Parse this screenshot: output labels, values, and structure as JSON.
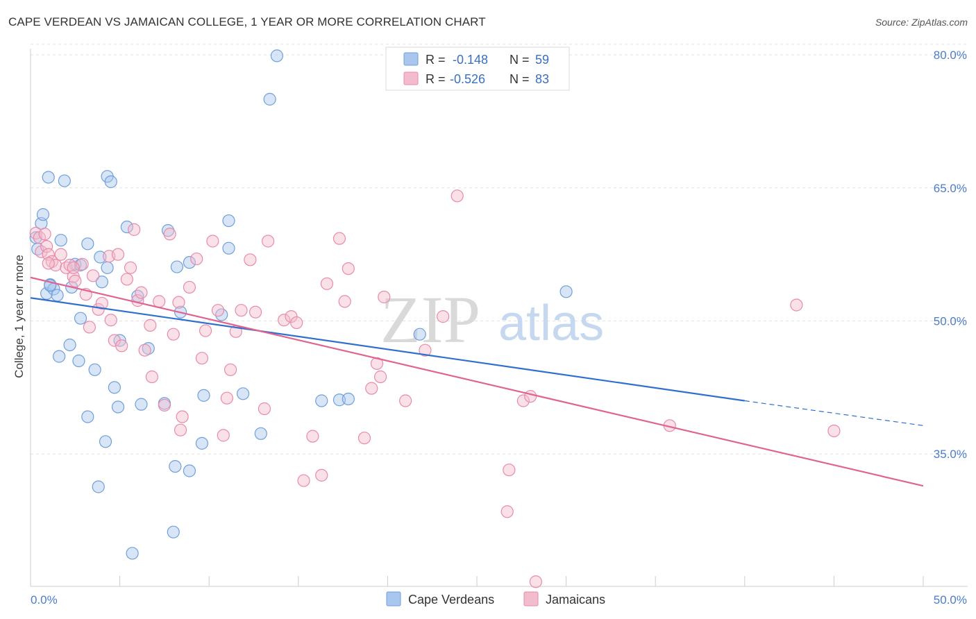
{
  "title": "CAPE VERDEAN VS JAMAICAN COLLEGE, 1 YEAR OR MORE CORRELATION CHART",
  "source": "Source: ZipAtlas.com",
  "watermark": {
    "zip": "ZIP",
    "atlas": "atlas"
  },
  "colors": {
    "blue": "#6f9fdc",
    "blue_fill": "#a9c6ee",
    "blue_line": "#2f6fce",
    "pink": "#e98aaa",
    "pink_fill": "#f3bccd",
    "pink_line": "#e0648f",
    "axis_text": "#4a7ccc",
    "grid": "#e3e3e3"
  },
  "legend": {
    "rows": [
      {
        "r_label": "R =",
        "r_value": "-0.148",
        "n_label": "N =",
        "n_value": "59"
      },
      {
        "r_label": "R =",
        "r_value": "-0.526",
        "n_label": "N =",
        "n_value": "83"
      }
    ]
  },
  "bottom_legend": [
    "Cape Verdeans",
    "Jamaicans"
  ],
  "chart_data": {
    "type": "scatter",
    "title": "CAPE VERDEAN VS JAMAICAN COLLEGE, 1 YEAR OR MORE CORRELATION CHART",
    "xlabel": "",
    "ylabel": "College, 1 year or more",
    "xlim": [
      0,
      50
    ],
    "ylim": [
      20,
      82
    ],
    "x_tick_labels": [
      "0.0%",
      "50.0%"
    ],
    "y_ticks": [
      35,
      50,
      65,
      80
    ],
    "y_tick_labels": [
      "35.0%",
      "50.0%",
      "65.0%",
      "80.0%"
    ],
    "grid": true,
    "legend_position": "top-center",
    "series": [
      {
        "name": "Cape Verdeans",
        "color": "#6f9fdc",
        "r": -0.148,
        "n": 59,
        "trend": {
          "x": [
            0,
            40
          ],
          "y": [
            52.6,
            41.0
          ],
          "dashed_to": [
            50,
            38.2
          ]
        },
        "points": [
          [
            0.3,
            59.4
          ],
          [
            0.4,
            58.1
          ],
          [
            0.6,
            61.0
          ],
          [
            0.7,
            62.0
          ],
          [
            0.9,
            53.1
          ],
          [
            1.0,
            66.2
          ],
          [
            1.1,
            54.1
          ],
          [
            1.3,
            53.6
          ],
          [
            1.5,
            52.9
          ],
          [
            1.6,
            46.0
          ],
          [
            1.7,
            59.1
          ],
          [
            1.9,
            65.8
          ],
          [
            2.2,
            47.3
          ],
          [
            2.3,
            53.8
          ],
          [
            2.5,
            56.4
          ],
          [
            2.7,
            45.5
          ],
          [
            2.8,
            50.3
          ],
          [
            3.2,
            39.2
          ],
          [
            3.2,
            58.7
          ],
          [
            3.6,
            44.5
          ],
          [
            3.9,
            57.2
          ],
          [
            4.0,
            54.4
          ],
          [
            4.2,
            36.4
          ],
          [
            4.3,
            66.3
          ],
          [
            4.5,
            65.7
          ],
          [
            4.7,
            42.5
          ],
          [
            4.9,
            40.3
          ],
          [
            5.0,
            47.8
          ],
          [
            5.4,
            60.6
          ],
          [
            6.0,
            52.8
          ],
          [
            6.2,
            40.6
          ],
          [
            6.6,
            46.9
          ],
          [
            7.5,
            40.7
          ],
          [
            7.7,
            60.2
          ],
          [
            8.1,
            33.6
          ],
          [
            8.2,
            56.1
          ],
          [
            8.4,
            51.0
          ],
          [
            8.9,
            56.6
          ],
          [
            8.9,
            33.1
          ],
          [
            9.6,
            36.2
          ],
          [
            9.7,
            41.6
          ],
          [
            10.7,
            50.7
          ],
          [
            11.1,
            58.2
          ],
          [
            11.1,
            61.3
          ],
          [
            11.9,
            41.8
          ],
          [
            12.9,
            37.3
          ],
          [
            13.4,
            75.0
          ],
          [
            13.8,
            79.9
          ],
          [
            3.8,
            31.3
          ],
          [
            8.0,
            26.2
          ],
          [
            5.7,
            23.8
          ],
          [
            16.3,
            41.0
          ],
          [
            17.3,
            41.1
          ],
          [
            17.8,
            41.2
          ],
          [
            21.8,
            48.5
          ],
          [
            30.0,
            53.3
          ],
          [
            2.8,
            56.3
          ],
          [
            1.1,
            54.0
          ],
          [
            4.3,
            56.0
          ]
        ]
      },
      {
        "name": "Jamaicans",
        "color": "#e98aaa",
        "r": -0.526,
        "n": 83,
        "trend": {
          "x": [
            0,
            50
          ],
          "y": [
            54.9,
            31.4
          ]
        },
        "points": [
          [
            0.3,
            59.9
          ],
          [
            0.5,
            59.4
          ],
          [
            0.6,
            57.8
          ],
          [
            0.8,
            59.8
          ],
          [
            0.9,
            58.4
          ],
          [
            1.0,
            57.5
          ],
          [
            1.2,
            56.7
          ],
          [
            1.4,
            56.3
          ],
          [
            1.7,
            57.5
          ],
          [
            2.0,
            56.0
          ],
          [
            2.2,
            56.3
          ],
          [
            2.4,
            55.0
          ],
          [
            2.5,
            54.5
          ],
          [
            2.9,
            56.4
          ],
          [
            3.1,
            53.0
          ],
          [
            3.3,
            49.3
          ],
          [
            3.5,
            55.1
          ],
          [
            3.8,
            51.3
          ],
          [
            4.0,
            52.0
          ],
          [
            4.4,
            57.3
          ],
          [
            4.5,
            50.1
          ],
          [
            4.7,
            47.8
          ],
          [
            4.9,
            57.5
          ],
          [
            5.1,
            47.2
          ],
          [
            5.4,
            54.7
          ],
          [
            5.6,
            56.0
          ],
          [
            5.8,
            60.3
          ],
          [
            6.0,
            52.3
          ],
          [
            6.2,
            53.2
          ],
          [
            6.4,
            46.7
          ],
          [
            6.7,
            49.5
          ],
          [
            6.8,
            43.7
          ],
          [
            7.2,
            52.2
          ],
          [
            7.5,
            40.5
          ],
          [
            7.8,
            59.8
          ],
          [
            8.0,
            48.5
          ],
          [
            8.3,
            52.1
          ],
          [
            8.4,
            37.7
          ],
          [
            8.5,
            39.2
          ],
          [
            8.9,
            53.8
          ],
          [
            9.3,
            57.0
          ],
          [
            9.6,
            45.8
          ],
          [
            9.8,
            48.9
          ],
          [
            10.2,
            59.0
          ],
          [
            10.5,
            51.2
          ],
          [
            10.8,
            37.1
          ],
          [
            11.0,
            41.3
          ],
          [
            11.2,
            44.5
          ],
          [
            11.5,
            48.8
          ],
          [
            11.8,
            51.2
          ],
          [
            12.3,
            56.9
          ],
          [
            12.6,
            51.0
          ],
          [
            13.1,
            40.1
          ],
          [
            13.3,
            59.0
          ],
          [
            14.2,
            50.1
          ],
          [
            14.6,
            50.5
          ],
          [
            14.9,
            49.8
          ],
          [
            15.3,
            32.0
          ],
          [
            15.8,
            37.0
          ],
          [
            16.3,
            32.6
          ],
          [
            16.6,
            54.2
          ],
          [
            17.3,
            59.3
          ],
          [
            17.6,
            52.2
          ],
          [
            17.8,
            55.9
          ],
          [
            18.7,
            36.8
          ],
          [
            19.1,
            42.4
          ],
          [
            19.4,
            45.2
          ],
          [
            19.6,
            43.7
          ],
          [
            19.8,
            52.7
          ],
          [
            21.0,
            41.0
          ],
          [
            22.1,
            46.7
          ],
          [
            23.1,
            50.5
          ],
          [
            23.9,
            64.1
          ],
          [
            26.7,
            28.5
          ],
          [
            26.8,
            33.2
          ],
          [
            27.6,
            41.0
          ],
          [
            28.0,
            41.5
          ],
          [
            28.3,
            20.6
          ],
          [
            35.8,
            38.2
          ],
          [
            42.9,
            51.8
          ],
          [
            45.0,
            37.6
          ],
          [
            1.0,
            56.5
          ],
          [
            2.4,
            56.0
          ]
        ]
      }
    ]
  }
}
